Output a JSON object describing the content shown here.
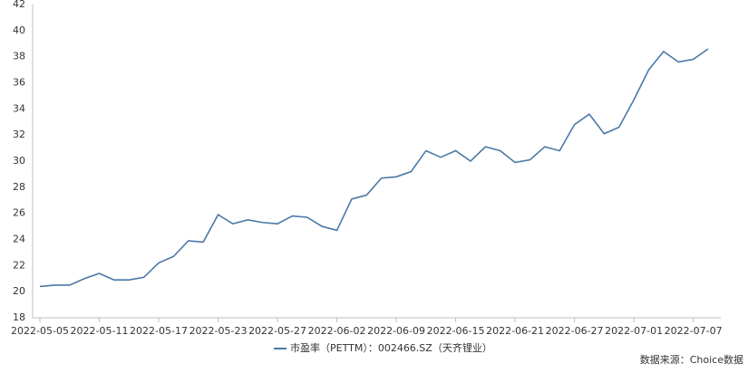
{
  "chart_data": {
    "type": "line",
    "x": [
      "2022-05-05",
      null,
      null,
      null,
      "2022-05-11",
      null,
      null,
      null,
      "2022-05-17",
      null,
      null,
      null,
      "2022-05-23",
      null,
      null,
      null,
      "2022-05-27",
      null,
      null,
      null,
      "2022-06-02",
      null,
      null,
      null,
      "2022-06-09",
      null,
      null,
      null,
      "2022-06-15",
      null,
      null,
      null,
      "2022-06-21",
      null,
      null,
      null,
      "2022-06-27",
      null,
      null,
      null,
      "2022-07-01",
      null,
      null,
      null,
      "2022-07-07",
      null
    ],
    "series": [
      {
        "name": "市盈率（PETTM）：002466.SZ（天齐锂业）",
        "color": "#4a78a6",
        "values": [
          20.4,
          20.5,
          20.5,
          21.0,
          21.4,
          20.9,
          20.9,
          21.1,
          22.2,
          22.7,
          23.9,
          23.8,
          25.9,
          25.2,
          25.5,
          25.3,
          25.2,
          25.8,
          25.7,
          25.0,
          24.7,
          27.1,
          27.4,
          28.7,
          28.8,
          29.2,
          30.8,
          30.3,
          30.8,
          30.0,
          31.1,
          30.8,
          29.9,
          30.1,
          31.1,
          30.8,
          32.8,
          33.6,
          32.1,
          32.6,
          34.7,
          37.0,
          38.4,
          37.6,
          37.8,
          38.6
        ]
      }
    ],
    "ylim": [
      18,
      42
    ],
    "yticks": [
      18,
      20,
      22,
      24,
      26,
      28,
      30,
      32,
      34,
      36,
      38,
      40,
      42
    ],
    "grid": false,
    "legend": "bottom",
    "source": "数据来源：Choice数据"
  }
}
